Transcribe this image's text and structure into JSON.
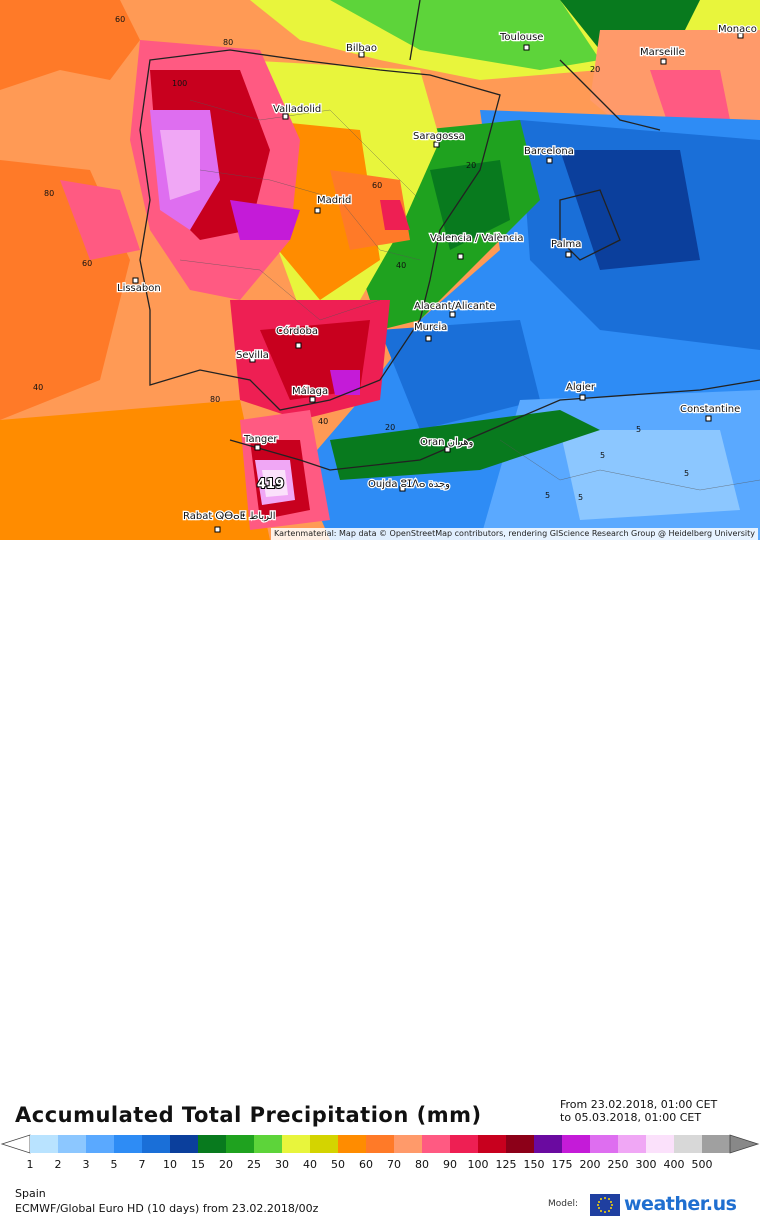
{
  "map": {
    "region": "Spain",
    "cities": [
      {
        "name": "Bilbao"
      },
      {
        "name": "Toulouse"
      },
      {
        "name": "Marseille"
      },
      {
        "name": "Monaco"
      },
      {
        "name": "Valladolid"
      },
      {
        "name": "Saragossa"
      },
      {
        "name": "Barcelona"
      },
      {
        "name": "Madrid"
      },
      {
        "name": "Valencia / València"
      },
      {
        "name": "Palma"
      },
      {
        "name": "Lissabon"
      },
      {
        "name": "Alacant/Alicante"
      },
      {
        "name": "Murcia"
      },
      {
        "name": "Córdoba"
      },
      {
        "name": "Sevilla"
      },
      {
        "name": "Málaga"
      },
      {
        "name": "Algier"
      },
      {
        "name": "Constantine"
      },
      {
        "name": "Tanger"
      },
      {
        "name": "Oran وهران"
      },
      {
        "name": "Oujda ⵓⵊⴷⴰ وجدة"
      },
      {
        "name": "Rabat ⵕⴱⴰⵟ الرباط"
      }
    ],
    "contour_labels": [
      "60",
      "80",
      "100",
      "80",
      "60",
      "40",
      "20",
      "5",
      "5",
      "5",
      "5",
      "40",
      "60",
      "80",
      "20",
      "40",
      "20",
      "5"
    ],
    "max_value": "419",
    "attribution": "Kartenmaterial: Map data © OpenStreetMap contributors, rendering GIScience Research Group @ Heidelberg University"
  },
  "legend": {
    "title": "Accumulated Total Precipitation (mm)",
    "period_from": "From 23.02.2018, 01:00 CET",
    "period_to": "to 05.03.2018, 01:00 CET",
    "colors": [
      "#b9e3ff",
      "#8cc7ff",
      "#5aa9ff",
      "#2e8cf5",
      "#1a6fd8",
      "#0b3f9c",
      "#087a1e",
      "#1fa21f",
      "#5dd43a",
      "#e8f53c",
      "#d4d400",
      "#ff8c00",
      "#ff7a28",
      "#ff9a6a",
      "#ff5a82",
      "#ee1f53",
      "#c8001e",
      "#8c0018",
      "#6a0aa0",
      "#c41bd8",
      "#de6ef0",
      "#f0a7f5",
      "#fbe1fb",
      "#d8d8d8",
      "#a0a0a0"
    ],
    "ticks": [
      "1",
      "2",
      "3",
      "5",
      "7",
      "10",
      "15",
      "20",
      "25",
      "30",
      "40",
      "50",
      "60",
      "70",
      "80",
      "90",
      "100",
      "125",
      "150",
      "175",
      "200",
      "250",
      "300",
      "400",
      "500"
    ]
  },
  "footer": {
    "region": "Spain",
    "model_info": "ECMWF/Global Euro HD (10 days) from 23.02.2018/00z",
    "model_label": "Model:",
    "brand": "weather.us"
  }
}
